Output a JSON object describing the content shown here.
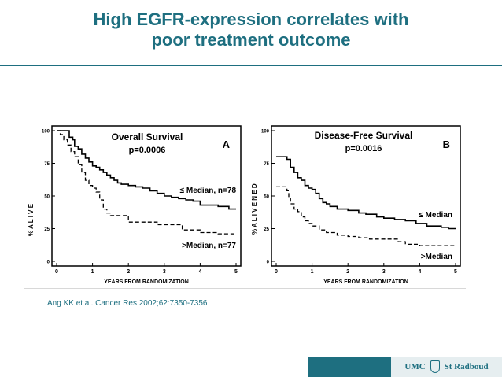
{
  "slide": {
    "title_line1": "High EGFR-expression correlates with",
    "title_line2": "poor treatment outcome",
    "citation": "Ang KK et al. Cancer Res 2002;62:7350-7356",
    "logo_left": "UMC",
    "logo_right": "St Radboud",
    "accent_color": "#1e6f80"
  },
  "chart_data": [
    {
      "type": "line",
      "title": "Overall Survival",
      "subtitle": "p=0.0006",
      "panel_label": "A",
      "xlabel": "YEARS FROM RANDOMIZATION",
      "ylabel": "% A L I V E",
      "xlim": [
        0,
        5
      ],
      "ylim": [
        0,
        100
      ],
      "xticks": [
        "0",
        "1",
        "2",
        "3",
        "4",
        "5"
      ],
      "yticks": [
        "0",
        "25",
        "50",
        "75",
        "100"
      ],
      "series": [
        {
          "name": "≤ Median, n=78",
          "style": "solid",
          "points": [
            [
              0,
              100
            ],
            [
              0.3,
              100
            ],
            [
              0.35,
              95
            ],
            [
              0.45,
              93
            ],
            [
              0.5,
              88
            ],
            [
              0.6,
              86
            ],
            [
              0.7,
              82
            ],
            [
              0.8,
              79
            ],
            [
              0.9,
              76
            ],
            [
              1.0,
              73
            ],
            [
              1.1,
              72
            ],
            [
              1.2,
              70
            ],
            [
              1.3,
              68
            ],
            [
              1.4,
              66
            ],
            [
              1.5,
              64
            ],
            [
              1.6,
              62
            ],
            [
              1.7,
              60
            ],
            [
              1.8,
              59
            ],
            [
              2.0,
              58
            ],
            [
              2.2,
              57
            ],
            [
              2.4,
              56
            ],
            [
              2.6,
              54
            ],
            [
              2.8,
              52
            ],
            [
              3.0,
              50
            ],
            [
              3.2,
              49
            ],
            [
              3.4,
              48
            ],
            [
              3.6,
              47
            ],
            [
              3.8,
              46
            ],
            [
              4.0,
              43
            ],
            [
              4.5,
              42
            ],
            [
              4.8,
              40
            ],
            [
              5.0,
              40
            ]
          ]
        },
        {
          "name": ">Median, n=77",
          "style": "dashed",
          "points": [
            [
              0,
              100
            ],
            [
              0.1,
              97
            ],
            [
              0.2,
              93
            ],
            [
              0.3,
              89
            ],
            [
              0.4,
              84
            ],
            [
              0.5,
              80
            ],
            [
              0.6,
              74
            ],
            [
              0.7,
              68
            ],
            [
              0.8,
              62
            ],
            [
              0.9,
              58
            ],
            [
              1.0,
              56
            ],
            [
              1.1,
              53
            ],
            [
              1.2,
              47
            ],
            [
              1.3,
              40
            ],
            [
              1.4,
              37
            ],
            [
              1.5,
              35
            ],
            [
              1.8,
              35
            ],
            [
              2.0,
              30
            ],
            [
              2.5,
              30
            ],
            [
              2.8,
              28
            ],
            [
              3.0,
              28
            ],
            [
              3.5,
              24
            ],
            [
              4.0,
              22
            ],
            [
              4.5,
              21
            ],
            [
              5.0,
              21
            ]
          ]
        }
      ]
    },
    {
      "type": "line",
      "title": "Disease-Free Survival",
      "subtitle": "p=0.0016",
      "panel_label": "B",
      "xlabel": "YEARS FROM RANDOMIZATION",
      "ylabel": "% A L I V E   N E D",
      "xlim": [
        0,
        5
      ],
      "ylim": [
        0,
        100
      ],
      "xticks": [
        "0",
        "1",
        "2",
        "3",
        "4",
        "5"
      ],
      "yticks": [
        "0",
        "25",
        "50",
        "75",
        "100"
      ],
      "series": [
        {
          "name": "≤ Median",
          "style": "solid",
          "points": [
            [
              0,
              80
            ],
            [
              0.2,
              80
            ],
            [
              0.3,
              78
            ],
            [
              0.4,
              72
            ],
            [
              0.5,
              68
            ],
            [
              0.6,
              64
            ],
            [
              0.7,
              62
            ],
            [
              0.8,
              58
            ],
            [
              0.9,
              56
            ],
            [
              1.0,
              55
            ],
            [
              1.1,
              52
            ],
            [
              1.2,
              48
            ],
            [
              1.3,
              45
            ],
            [
              1.4,
              44
            ],
            [
              1.5,
              42
            ],
            [
              1.7,
              40
            ],
            [
              2.0,
              39
            ],
            [
              2.3,
              37
            ],
            [
              2.5,
              36
            ],
            [
              2.8,
              34
            ],
            [
              3.0,
              33
            ],
            [
              3.3,
              32
            ],
            [
              3.6,
              31
            ],
            [
              3.9,
              29
            ],
            [
              4.2,
              27
            ],
            [
              4.6,
              26
            ],
            [
              4.8,
              25
            ],
            [
              5.0,
              25
            ]
          ]
        },
        {
          "name": ">Median",
          "style": "dashed",
          "points": [
            [
              0,
              57
            ],
            [
              0.2,
              57
            ],
            [
              0.3,
              54
            ],
            [
              0.35,
              49
            ],
            [
              0.4,
              44
            ],
            [
              0.5,
              40
            ],
            [
              0.6,
              38
            ],
            [
              0.7,
              34
            ],
            [
              0.8,
              31
            ],
            [
              0.9,
              29
            ],
            [
              1.0,
              27
            ],
            [
              1.2,
              24
            ],
            [
              1.4,
              22
            ],
            [
              1.7,
              20
            ],
            [
              2.0,
              19
            ],
            [
              2.3,
              18
            ],
            [
              2.6,
              17
            ],
            [
              3.2,
              17
            ],
            [
              3.4,
              15
            ],
            [
              3.6,
              13
            ],
            [
              4.0,
              12
            ],
            [
              5.0,
              12
            ]
          ]
        }
      ]
    }
  ]
}
